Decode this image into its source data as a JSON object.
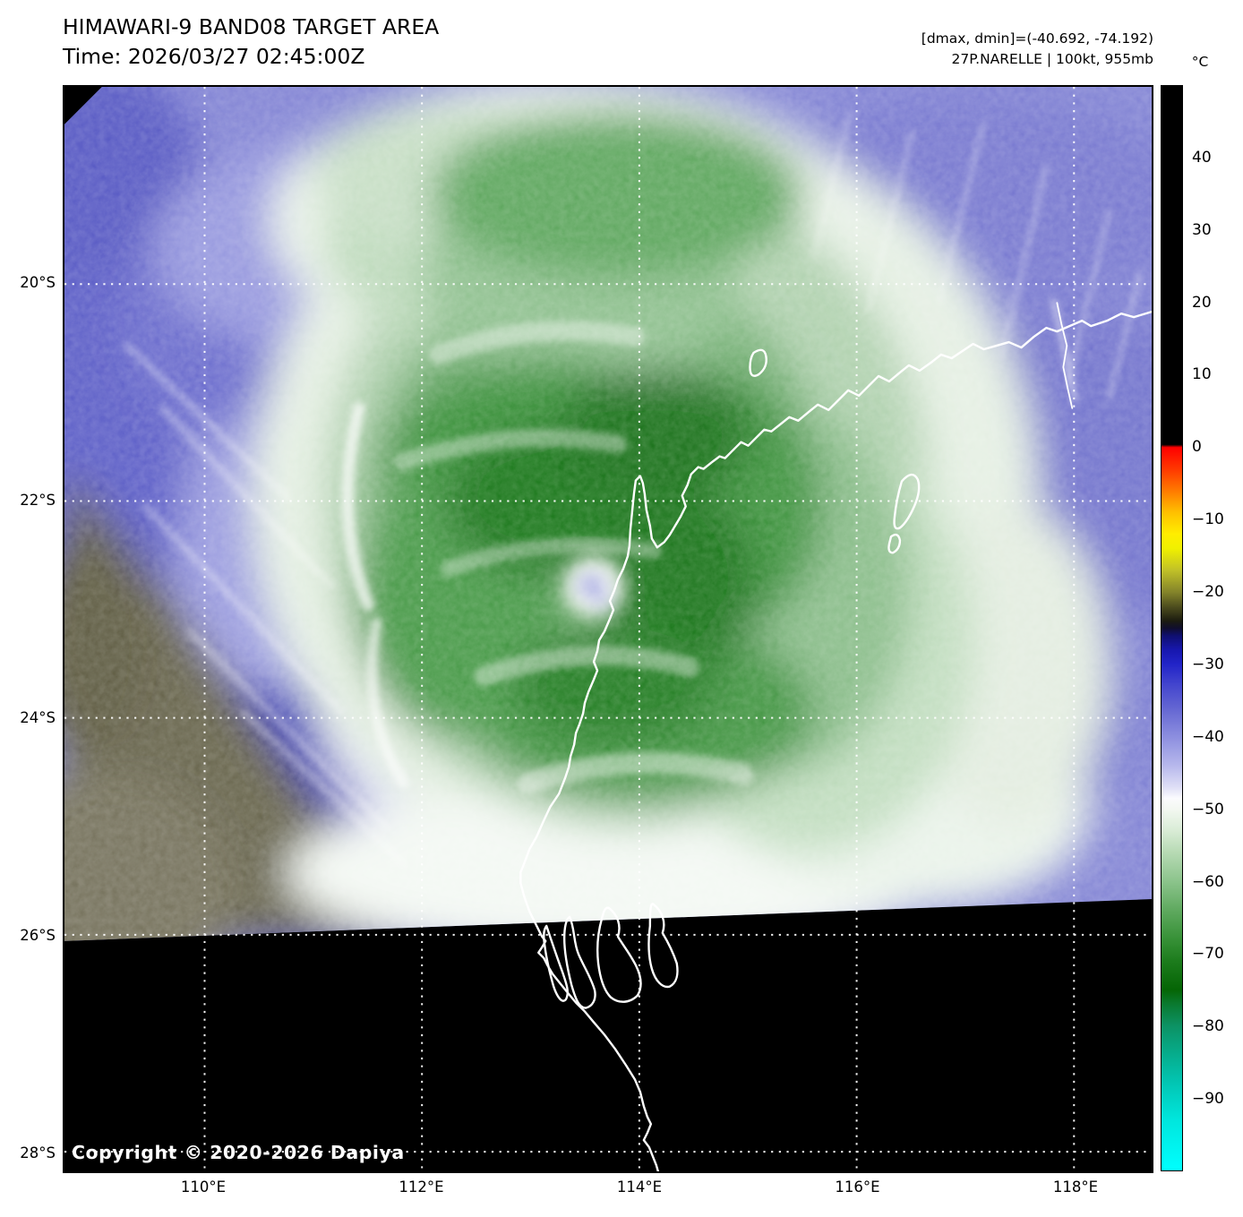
{
  "header": {
    "title": "HIMAWARI-9 BAND08 TARGET AREA",
    "time": "Time: 2026/03/27 02:45:00Z",
    "dmax_dmin": "[dmax, dmin]=(-40.692, -74.192)",
    "storm_info": "27P.NARELLE | 100kt, 955mb"
  },
  "map": {
    "copyright": "Copyright © 2020-2026 Dapiya"
  },
  "axes": {
    "lat_ticks": [
      {
        "value": 20,
        "label": "20°S"
      },
      {
        "value": 22,
        "label": "22°S"
      },
      {
        "value": 24,
        "label": "24°S"
      },
      {
        "value": 26,
        "label": "26°S"
      },
      {
        "value": 28,
        "label": "28°S"
      }
    ],
    "lon_ticks": [
      {
        "value": 110,
        "label": "110°E"
      },
      {
        "value": 112,
        "label": "112°E"
      },
      {
        "value": 114,
        "label": "114°E"
      },
      {
        "value": 116,
        "label": "116°E"
      },
      {
        "value": 118,
        "label": "118°E"
      }
    ]
  },
  "colorbar": {
    "unit": "°C",
    "max": 50,
    "min": -100,
    "ticks": [
      {
        "value": 40,
        "label": "40"
      },
      {
        "value": 30,
        "label": "30"
      },
      {
        "value": 20,
        "label": "20"
      },
      {
        "value": 10,
        "label": "10"
      },
      {
        "value": 0,
        "label": "0"
      },
      {
        "value": -10,
        "label": "−10"
      },
      {
        "value": -20,
        "label": "−20"
      },
      {
        "value": -30,
        "label": "−30"
      },
      {
        "value": -40,
        "label": "−40"
      },
      {
        "value": -50,
        "label": "−50"
      },
      {
        "value": -60,
        "label": "−60"
      },
      {
        "value": -70,
        "label": "−70"
      },
      {
        "value": -80,
        "label": "−80"
      },
      {
        "value": -90,
        "label": "−90"
      }
    ],
    "gradient_stops": [
      {
        "value": 50,
        "color": "#000000"
      },
      {
        "value": 0.4,
        "color": "#000000"
      },
      {
        "value": 0,
        "color": "#ff0000"
      },
      {
        "value": -3,
        "color": "#ff3800"
      },
      {
        "value": -6,
        "color": "#ff7a00"
      },
      {
        "value": -9,
        "color": "#ffc000"
      },
      {
        "value": -12,
        "color": "#ffee00"
      },
      {
        "value": -14,
        "color": "#f0f000"
      },
      {
        "value": -17,
        "color": "#c0c028"
      },
      {
        "value": -20,
        "color": "#84842a"
      },
      {
        "value": -22,
        "color": "#4e4e1e"
      },
      {
        "value": -24,
        "color": "#1c1c10"
      },
      {
        "value": -25,
        "color": "#100e2e"
      },
      {
        "value": -26,
        "color": "#0f0f6e"
      },
      {
        "value": -28,
        "color": "#1717ae"
      },
      {
        "value": -30,
        "color": "#2224c8"
      },
      {
        "value": -33,
        "color": "#4547ce"
      },
      {
        "value": -36,
        "color": "#6365d2"
      },
      {
        "value": -40,
        "color": "#8c8edf"
      },
      {
        "value": -44,
        "color": "#b7b8ec"
      },
      {
        "value": -47,
        "color": "#dfdff6"
      },
      {
        "value": -48.5,
        "color": "#fbfbfe"
      },
      {
        "value": -50,
        "color": "#f3f8f1"
      },
      {
        "value": -53,
        "color": "#d9ecd6"
      },
      {
        "value": -56,
        "color": "#b7dab4"
      },
      {
        "value": -60,
        "color": "#8cc48c"
      },
      {
        "value": -64,
        "color": "#5fa95f"
      },
      {
        "value": -68,
        "color": "#379137"
      },
      {
        "value": -71,
        "color": "#1d7c1d"
      },
      {
        "value": -75,
        "color": "#056505"
      },
      {
        "value": -77,
        "color": "#0a7a30"
      },
      {
        "value": -80,
        "color": "#0c9264"
      },
      {
        "value": -84,
        "color": "#06ad8d"
      },
      {
        "value": -88,
        "color": "#02c6b4"
      },
      {
        "value": -93,
        "color": "#00e6dd"
      },
      {
        "value": -100,
        "color": "#00ffff"
      }
    ]
  }
}
